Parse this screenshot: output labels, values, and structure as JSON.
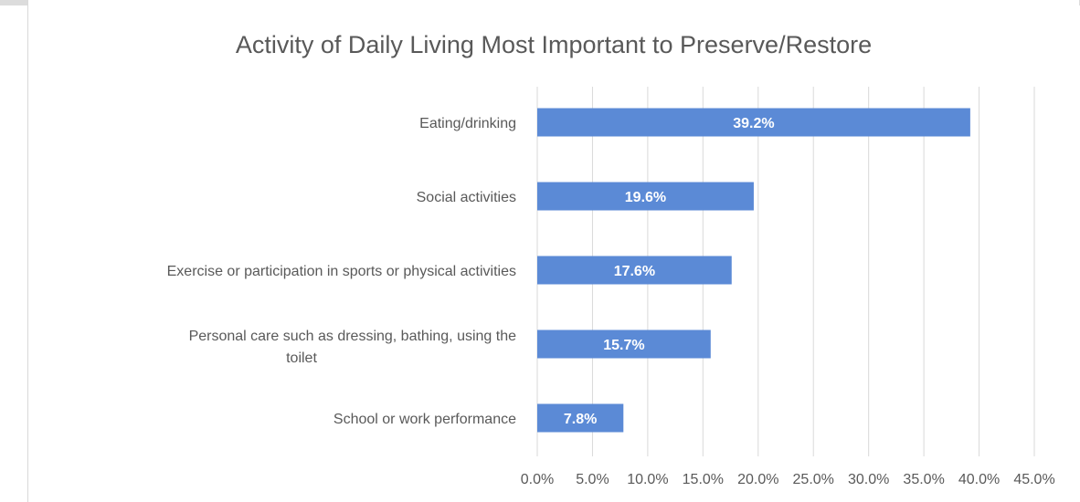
{
  "chart_data": {
    "type": "bar",
    "orientation": "horizontal",
    "title": "Activity of Daily Living Most Important to Preserve/Restore",
    "categories": [
      "Eating/drinking",
      "Social activities",
      "Exercise or participation in sports or physical activities",
      "Personal care such as dressing, bathing, using the toilet",
      "School or work performance"
    ],
    "values": [
      39.2,
      19.6,
      17.6,
      15.7,
      7.8
    ],
    "data_labels": [
      "39.2%",
      "19.6%",
      "17.6%",
      "15.7%",
      "7.8%"
    ],
    "xlim": [
      0,
      45
    ],
    "x_ticks": [
      "0.0%",
      "5.0%",
      "10.0%",
      "15.0%",
      "20.0%",
      "25.0%",
      "30.0%",
      "35.0%",
      "40.0%",
      "45.0%"
    ],
    "grid": true,
    "legend": "none",
    "bar_color": "#5b8ad6",
    "grid_color": "#d9d9d9",
    "label_color": "#595959"
  }
}
